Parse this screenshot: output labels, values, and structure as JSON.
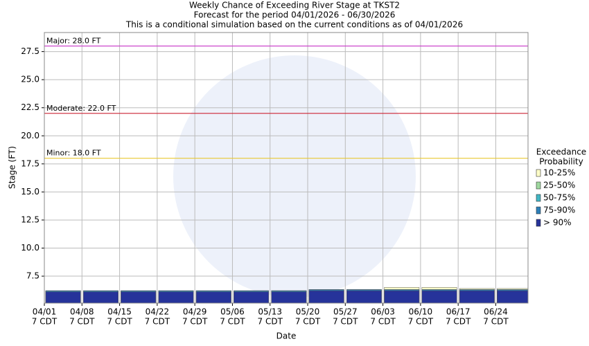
{
  "chart_data": {
    "type": "bar",
    "title": "Weekly Chance of Exceeding River Stage at TKST2",
    "subtitle": "Forecast for the period 04/01/2026 - 06/30/2026",
    "note": "This is a conditional simulation based on the current conditions as of 04/01/2026",
    "x_label": "Date",
    "y_label": "Stage (FT)",
    "categories": [
      "04/01",
      "04/08",
      "04/15",
      "04/22",
      "04/29",
      "05/06",
      "05/13",
      "05/20",
      "05/27",
      "06/03",
      "06/10",
      "06/17",
      "06/24"
    ],
    "tick_sublabel": "7 CDT",
    "legend_title": [
      "Exceedance",
      "Probability"
    ],
    "series": [
      {
        "name": "10-25%",
        "color": "#ffffc8",
        "values": [
          6.2,
          6.2,
          6.2,
          6.2,
          6.2,
          6.2,
          6.2,
          6.3,
          6.3,
          6.5,
          6.5,
          6.4,
          6.4
        ]
      },
      {
        "name": "25-50%",
        "color": "#9fd89f",
        "values": [
          6.2,
          6.2,
          6.2,
          6.2,
          6.2,
          6.2,
          6.2,
          6.3,
          6.3,
          6.3,
          6.3,
          6.3,
          6.3
        ]
      },
      {
        "name": "50-75%",
        "color": "#41b6c4",
        "values": [
          6.2,
          6.2,
          6.2,
          6.2,
          6.2,
          6.2,
          6.2,
          6.3,
          6.3,
          6.3,
          6.3,
          6.3,
          6.3
        ]
      },
      {
        "name": "75-90%",
        "color": "#2c7fb8",
        "values": [
          6.2,
          6.2,
          6.2,
          6.2,
          6.2,
          6.2,
          6.2,
          6.3,
          6.3,
          6.3,
          6.3,
          6.3,
          6.3
        ]
      },
      {
        "name": "> 90%",
        "color": "#26339a",
        "values": [
          6.1,
          6.1,
          6.1,
          6.1,
          6.1,
          6.1,
          6.1,
          6.2,
          6.2,
          6.2,
          6.2,
          6.2,
          6.2
        ]
      }
    ],
    "thresholds": [
      {
        "value": 28.0,
        "label": "Major: 28.0 FT",
        "color": "#cc44cc"
      },
      {
        "value": 22.0,
        "label": "Moderate: 22.0 FT",
        "color": "#cc2233"
      },
      {
        "value": 18.0,
        "label": "Minor: 18.0 FT",
        "color": "#e8c830"
      }
    ],
    "ylim": [
      5.1,
      29.2
    ],
    "yticks": [
      7.5,
      {
        "value": 10,
        "label": "10.0"
      },
      12.5,
      {
        "value": 15,
        "label": "15.0"
      },
      17.5,
      {
        "value": 20,
        "label": "20.0"
      },
      22.5,
      {
        "value": 25,
        "label": "25.0"
      },
      27.5
    ],
    "grid": true
  }
}
